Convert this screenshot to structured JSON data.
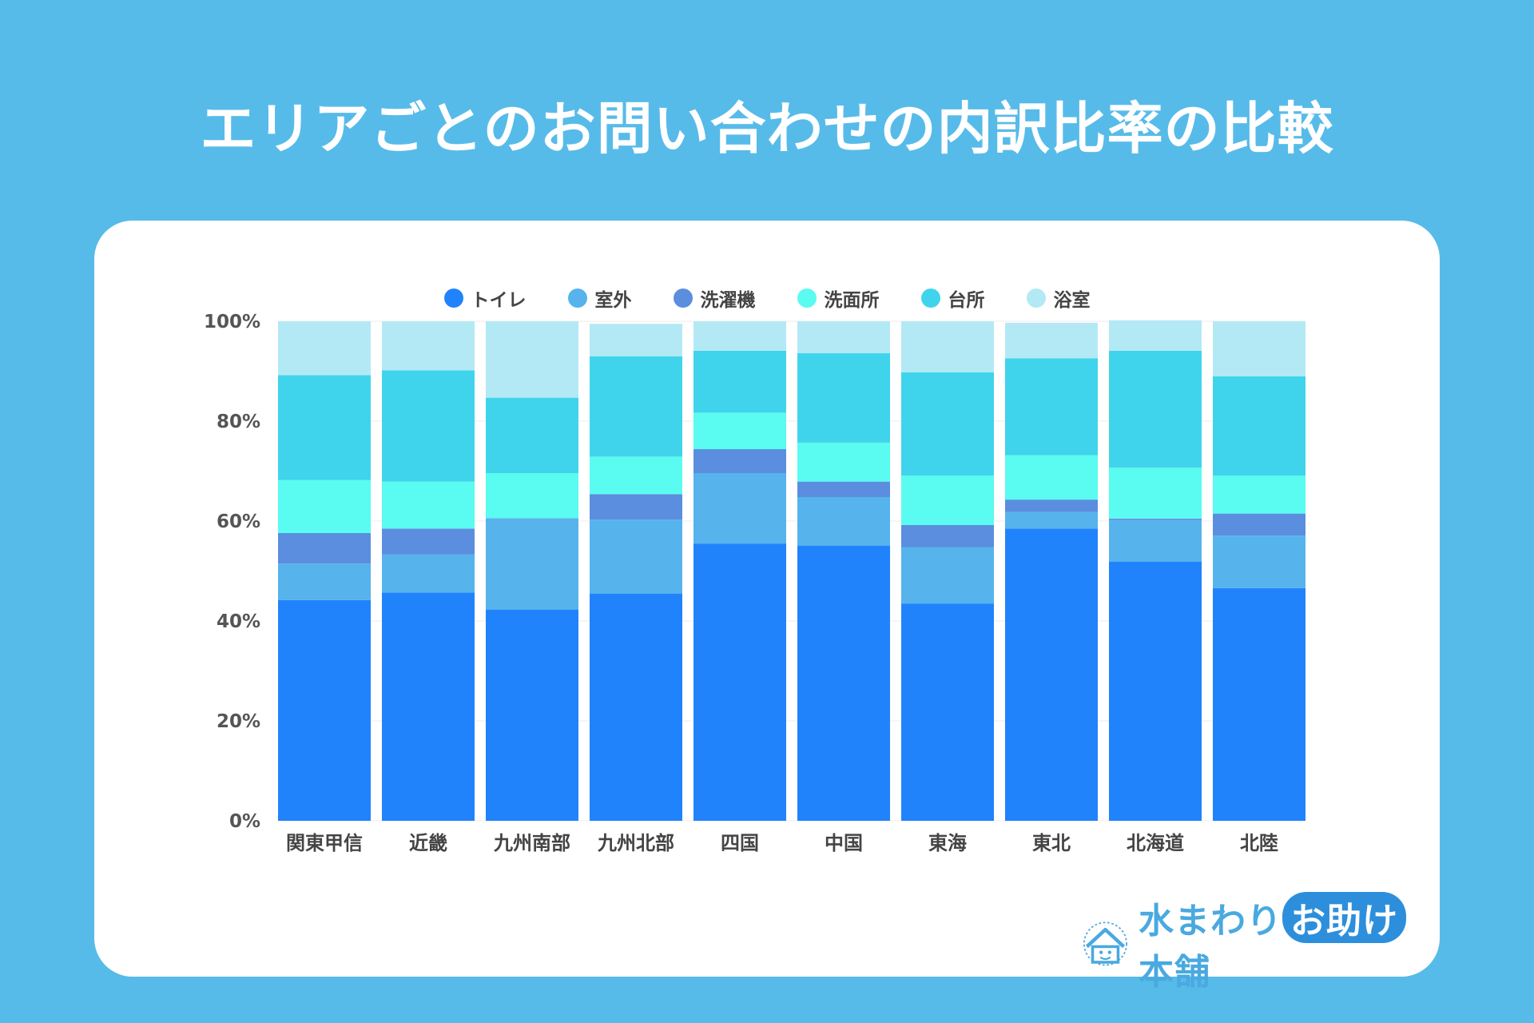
{
  "title": "エリアごとのお問い合わせの内訳比率の比較",
  "logo": {
    "part1": "水まわり",
    "part2": "お助け",
    "part3": "本舗"
  },
  "chart_data": {
    "type": "bar",
    "stacked": true,
    "title": "エリアごとのお問い合わせの内訳比率の比較",
    "categories": [
      "関東甲信",
      "近畿",
      "九州南部",
      "九州北部",
      "四国",
      "中国",
      "東海",
      "東北",
      "北海道",
      "北陸"
    ],
    "ylim": [
      0,
      100
    ],
    "yticks": [
      "0%",
      "20%",
      "40%",
      "60%",
      "80%",
      "100%"
    ],
    "legend_position": "top-center",
    "series": [
      {
        "name": "トイレ",
        "color": "#2183fc",
        "values": [
          44.2,
          45.7,
          42.3,
          45.5,
          55.5,
          55.1,
          43.5,
          58.5,
          51.9,
          46.6
        ]
      },
      {
        "name": "室外",
        "color": "#56b3ec",
        "values": [
          7.3,
          7.6,
          18.3,
          14.8,
          14.1,
          9.7,
          11.3,
          3.3,
          8.3,
          10.5
        ]
      },
      {
        "name": "洗濯機",
        "color": "#5b8ede",
        "values": [
          6.1,
          5.2,
          0,
          5.1,
          4.8,
          3.1,
          4.4,
          2.5,
          0.3,
          4.4
        ]
      },
      {
        "name": "洗面所",
        "color": "#5afbf0",
        "values": [
          10.6,
          9.4,
          9.0,
          7.5,
          7.3,
          7.8,
          9.9,
          8.9,
          10.2,
          7.6
        ]
      },
      {
        "name": "台所",
        "color": "#40d4ec",
        "values": [
          21.0,
          22.3,
          15.1,
          20.1,
          12.4,
          17.9,
          20.7,
          19.4,
          23.4,
          19.9
        ]
      },
      {
        "name": "浴室",
        "color": "#b3e9f5",
        "values": [
          10.8,
          9.8,
          15.3,
          6.5,
          5.9,
          6.4,
          10.2,
          7.1,
          6.1,
          11.0
        ]
      }
    ]
  }
}
